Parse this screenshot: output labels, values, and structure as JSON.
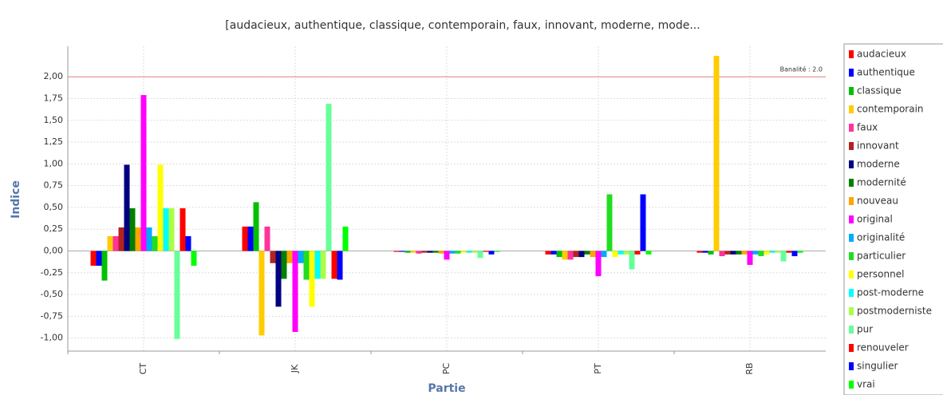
{
  "chart_data": {
    "type": "bar",
    "title": "[audacieux, authentique, classique, contemporain, faux, innovant, moderne, mode...",
    "x_label": "Partie",
    "y_label": "Indice",
    "categories": [
      "CT",
      "JK",
      "PC",
      "PT",
      "RB"
    ],
    "ylim": [
      -1.15,
      2.35
    ],
    "yticks": [
      {
        "value": -1,
        "label": "-1,00"
      },
      {
        "value": -0.75,
        "label": "-0,75"
      },
      {
        "value": -0.5,
        "label": "-0,50"
      },
      {
        "value": -0.25,
        "label": "-0,25"
      },
      {
        "value": 0,
        "label": "0,00"
      },
      {
        "value": 0.25,
        "label": "0,25"
      },
      {
        "value": 0.5,
        "label": "0,50"
      },
      {
        "value": 0.75,
        "label": "0,75"
      },
      {
        "value": 1,
        "label": "1,00"
      },
      {
        "value": 1.25,
        "label": "1,25"
      },
      {
        "value": 1.5,
        "label": "1,50"
      },
      {
        "value": 1.75,
        "label": "1,75"
      },
      {
        "value": 2,
        "label": "2,00"
      }
    ],
    "grid": true,
    "threshold": {
      "value": 2,
      "label": "Banalité : 2.0",
      "color": "#e88080"
    },
    "legend": "right",
    "series": [
      {
        "name": "audacieux",
        "color": "#ff0000",
        "values": [
          -0.17,
          0.28,
          -0.01,
          -0.04,
          -0.02
        ]
      },
      {
        "name": "authentique",
        "color": "#0000ff",
        "values": [
          -0.17,
          0.28,
          -0.01,
          -0.04,
          -0.02
        ]
      },
      {
        "name": "classique",
        "color": "#00c000",
        "values": [
          -0.34,
          0.56,
          -0.02,
          -0.07,
          -0.04
        ]
      },
      {
        "name": "contemporain",
        "color": "#ffcc00",
        "values": [
          0.17,
          -0.97,
          -0.02,
          -0.1,
          2.24
        ]
      },
      {
        "name": "faux",
        "color": "#ff3399",
        "values": [
          0.17,
          0.28,
          -0.03,
          -0.1,
          -0.06
        ]
      },
      {
        "name": "innovant",
        "color": "#b22222",
        "values": [
          0.27,
          -0.14,
          -0.02,
          -0.07,
          -0.04
        ]
      },
      {
        "name": "moderne",
        "color": "#000080",
        "values": [
          0.99,
          -0.64,
          -0.02,
          -0.07,
          -0.04
        ]
      },
      {
        "name": "modernité",
        "color": "#008000",
        "values": [
          0.49,
          -0.32,
          -0.02,
          -0.04,
          -0.04
        ]
      },
      {
        "name": "nouveau",
        "color": "#ffa500",
        "values": [
          0.27,
          -0.14,
          -0.03,
          -0.07,
          -0.04
        ]
      },
      {
        "name": "original",
        "color": "#ff00ff",
        "values": [
          1.79,
          -0.93,
          -0.1,
          -0.29,
          -0.16
        ]
      },
      {
        "name": "originalité",
        "color": "#00aaff",
        "values": [
          0.27,
          -0.14,
          -0.03,
          -0.07,
          -0.04
        ]
      },
      {
        "name": "particulier",
        "color": "#22dd22",
        "values": [
          0.17,
          -0.33,
          -0.03,
          0.65,
          -0.06
        ]
      },
      {
        "name": "personnel",
        "color": "#ffff00",
        "values": [
          0.99,
          -0.64,
          -0.02,
          -0.07,
          -0.04
        ]
      },
      {
        "name": "post-moderne",
        "color": "#00ffff",
        "values": [
          0.49,
          -0.32,
          -0.02,
          -0.04,
          -0.02
        ]
      },
      {
        "name": "postmoderniste",
        "color": "#aaff44",
        "values": [
          0.49,
          -0.32,
          -0.02,
          -0.04,
          -0.02
        ]
      },
      {
        "name": "pur",
        "color": "#66ff99",
        "values": [
          -1.01,
          1.69,
          -0.08,
          -0.21,
          -0.12
        ]
      },
      {
        "name": "renouveler",
        "color": "#ff0000",
        "values": [
          0.49,
          -0.32,
          -0.01,
          -0.04,
          -0.02
        ]
      },
      {
        "name": "singulier",
        "color": "#0000ff",
        "values": [
          0.17,
          -0.33,
          -0.04,
          0.65,
          -0.06
        ]
      },
      {
        "name": "vrai",
        "color": "#00ff00",
        "values": [
          -0.17,
          0.28,
          -0.01,
          -0.04,
          -0.02
        ]
      }
    ]
  }
}
